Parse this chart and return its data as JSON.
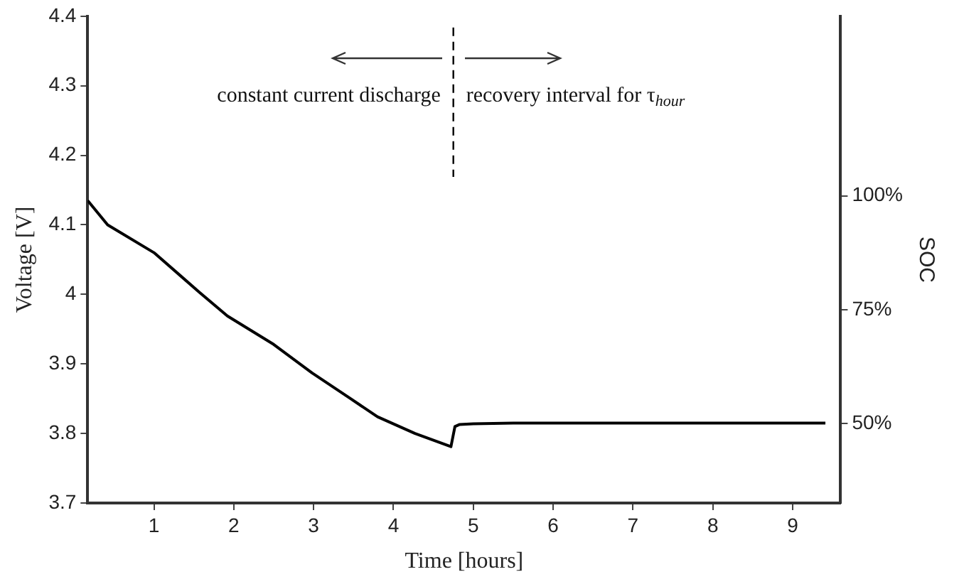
{
  "chart_data": {
    "type": "line",
    "xlabel": "Time [hours]",
    "ylabel": "Voltage [V]",
    "y2label": "SOC",
    "annotations": [
      "constant current discharge",
      "recovery interval for τ$_{hour}$"
    ],
    "x": [
      0.17,
      0.42,
      1.0,
      1.57,
      1.92,
      2.5,
      2.98,
      3.45,
      3.8,
      4.27,
      4.72,
      4.77,
      4.83,
      5.0,
      5.5,
      6.5,
      7.5,
      8.5,
      9.41
    ],
    "series": [
      {
        "color": "#000000",
        "values": [
          4.135,
          4.1,
          4.06,
          4.003,
          3.969,
          3.928,
          3.887,
          3.851,
          3.824,
          3.8,
          3.781,
          3.81,
          3.813,
          3.814,
          3.815,
          3.815,
          3.815,
          3.815,
          3.815
        ]
      }
    ],
    "xlim": [
      0.17,
      9.6
    ],
    "xticks": [
      1,
      2,
      3,
      4,
      5,
      6,
      7,
      8,
      9
    ],
    "ylim": [
      3.7,
      4.4
    ],
    "yticks": [
      3.7,
      3.8,
      3.9,
      4,
      4.1,
      4.2,
      4.3,
      4.4
    ],
    "y2lim": [
      32.6,
      139.4
    ],
    "y2ticks": [
      {
        "value": 50,
        "label": "50%"
      },
      {
        "value": 75,
        "label": "75%"
      },
      {
        "value": 100,
        "label": "100%"
      }
    ],
    "ref_lines": [
      {
        "axis": "x",
        "value": 4.75,
        "line_style": "dashed",
        "color": "#000000"
      }
    ],
    "grid": false,
    "legend": false,
    "marker": "none",
    "line_style": "solid"
  }
}
